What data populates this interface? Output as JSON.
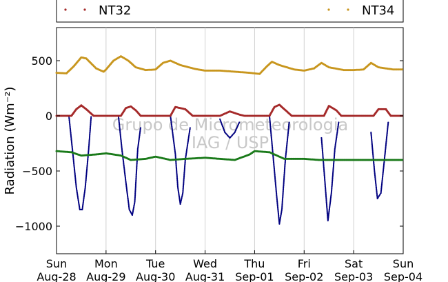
{
  "chart_data": {
    "type": "scatter",
    "ylabel": "Radiation (Wm⁻²)",
    "xlabel": "",
    "ylim": [
      -1250,
      800
    ],
    "yticks": [
      500,
      0,
      -500,
      -1000
    ],
    "grid": "vertical-only",
    "watermark": [
      "Grupo de Micrometeorologia",
      "IAG / USP"
    ],
    "x_ticks": [
      {
        "day": "Sun",
        "date": "Aug-28"
      },
      {
        "day": "Mon",
        "date": "Aug-29"
      },
      {
        "day": "Tue",
        "date": "Aug-30"
      },
      {
        "day": "Wed",
        "date": "Aug-31"
      },
      {
        "day": "Thu",
        "date": "Sep-01"
      },
      {
        "day": "Fri",
        "date": "Sep-02"
      },
      {
        "day": "Sat",
        "date": "Sep-03"
      },
      {
        "day": "Sun",
        "date": "Sep-04"
      }
    ],
    "legend": {
      "placement": "top",
      "entries": [
        {
          "name": "NT32",
          "color": "#a52a2a"
        },
        {
          "name": "NT34",
          "color": "#c8961e"
        }
      ]
    },
    "series": [
      {
        "key": "nt34",
        "color": "#c8961e",
        "points": [
          [
            0,
            390
          ],
          [
            0.2,
            385
          ],
          [
            0.35,
            450
          ],
          [
            0.5,
            530
          ],
          [
            0.6,
            520
          ],
          [
            0.8,
            430
          ],
          [
            0.95,
            400
          ],
          [
            1.0,
            420
          ],
          [
            1.15,
            500
          ],
          [
            1.3,
            540
          ],
          [
            1.45,
            500
          ],
          [
            1.6,
            440
          ],
          [
            1.8,
            415
          ],
          [
            2.0,
            420
          ],
          [
            2.15,
            480
          ],
          [
            2.3,
            500
          ],
          [
            2.5,
            460
          ],
          [
            2.8,
            425
          ],
          [
            3.0,
            410
          ],
          [
            3.3,
            410
          ],
          [
            3.6,
            400
          ],
          [
            3.9,
            390
          ],
          [
            4.1,
            380
          ],
          [
            4.25,
            450
          ],
          [
            4.35,
            490
          ],
          [
            4.5,
            460
          ],
          [
            4.8,
            420
          ],
          [
            5.0,
            410
          ],
          [
            5.2,
            430
          ],
          [
            5.35,
            480
          ],
          [
            5.5,
            440
          ],
          [
            5.8,
            415
          ],
          [
            6.0,
            415
          ],
          [
            6.2,
            420
          ],
          [
            6.35,
            480
          ],
          [
            6.5,
            440
          ],
          [
            6.8,
            420
          ],
          [
            7.0,
            420
          ]
        ]
      },
      {
        "key": "nt32",
        "color": "#a52a2a",
        "points": [
          [
            0,
            0
          ],
          [
            0.3,
            0
          ],
          [
            0.4,
            60
          ],
          [
            0.5,
            95
          ],
          [
            0.6,
            60
          ],
          [
            0.75,
            0
          ],
          [
            1.0,
            0
          ],
          [
            1.3,
            0
          ],
          [
            1.4,
            70
          ],
          [
            1.5,
            85
          ],
          [
            1.6,
            50
          ],
          [
            1.7,
            0
          ],
          [
            2.0,
            0
          ],
          [
            2.3,
            0
          ],
          [
            2.4,
            80
          ],
          [
            2.6,
            60
          ],
          [
            2.75,
            0
          ],
          [
            3.0,
            0
          ],
          [
            3.3,
            0
          ],
          [
            3.5,
            40
          ],
          [
            3.7,
            10
          ],
          [
            3.8,
            0
          ],
          [
            4.0,
            0
          ],
          [
            4.3,
            0
          ],
          [
            4.4,
            80
          ],
          [
            4.5,
            100
          ],
          [
            4.6,
            60
          ],
          [
            4.75,
            0
          ],
          [
            5.0,
            0
          ],
          [
            5.4,
            0
          ],
          [
            5.5,
            90
          ],
          [
            5.65,
            50
          ],
          [
            5.75,
            0
          ],
          [
            6.0,
            0
          ],
          [
            6.4,
            0
          ],
          [
            6.5,
            60
          ],
          [
            6.65,
            60
          ],
          [
            6.75,
            0
          ],
          [
            7.0,
            0
          ]
        ]
      },
      {
        "key": "green",
        "color": "#1a7a1a",
        "points": [
          [
            0,
            -320
          ],
          [
            0.3,
            -330
          ],
          [
            0.5,
            -360
          ],
          [
            0.8,
            -350
          ],
          [
            1.0,
            -340
          ],
          [
            1.3,
            -360
          ],
          [
            1.5,
            -400
          ],
          [
            1.8,
            -390
          ],
          [
            2.0,
            -370
          ],
          [
            2.3,
            -400
          ],
          [
            2.6,
            -390
          ],
          [
            3.0,
            -380
          ],
          [
            3.3,
            -390
          ],
          [
            3.6,
            -400
          ],
          [
            3.9,
            -350
          ],
          [
            4.0,
            -320
          ],
          [
            4.3,
            -330
          ],
          [
            4.6,
            -390
          ],
          [
            5.0,
            -390
          ],
          [
            5.3,
            -400
          ],
          [
            5.7,
            -400
          ],
          [
            6.0,
            -400
          ],
          [
            6.3,
            -400
          ],
          [
            6.7,
            -400
          ],
          [
            7.0,
            -400
          ]
        ]
      },
      {
        "key": "navy",
        "color": "#000080",
        "points": [
          [
            0.25,
            0
          ],
          [
            0.32,
            -300
          ],
          [
            0.4,
            -650
          ],
          [
            0.47,
            -850
          ],
          [
            0.52,
            -850
          ],
          [
            0.58,
            -650
          ],
          [
            0.65,
            -300
          ],
          [
            0.7,
            0
          ],
          [
            1.25,
            0
          ],
          [
            1.32,
            -300
          ],
          [
            1.4,
            -600
          ],
          [
            1.47,
            -850
          ],
          [
            1.53,
            -900
          ],
          [
            1.58,
            -780
          ],
          [
            1.64,
            -300
          ],
          [
            1.7,
            -100
          ],
          [
            2.3,
            0
          ],
          [
            2.4,
            -350
          ],
          [
            2.45,
            -650
          ],
          [
            2.5,
            -800
          ],
          [
            2.55,
            -700
          ],
          [
            2.6,
            -400
          ],
          [
            2.7,
            -100
          ],
          [
            3.3,
            -30
          ],
          [
            3.4,
            -150
          ],
          [
            3.5,
            -200
          ],
          [
            3.6,
            -150
          ],
          [
            3.7,
            -50
          ],
          [
            4.3,
            0
          ],
          [
            4.38,
            -400
          ],
          [
            4.45,
            -750
          ],
          [
            4.5,
            -980
          ],
          [
            4.55,
            -850
          ],
          [
            4.62,
            -400
          ],
          [
            4.7,
            -50
          ],
          [
            5.35,
            -200
          ],
          [
            5.42,
            -600
          ],
          [
            5.48,
            -950
          ],
          [
            5.55,
            -700
          ],
          [
            5.62,
            -300
          ],
          [
            5.7,
            -50
          ],
          [
            6.35,
            -150
          ],
          [
            6.42,
            -500
          ],
          [
            6.48,
            -750
          ],
          [
            6.55,
            -700
          ],
          [
            6.62,
            -400
          ],
          [
            6.7,
            -50
          ]
        ]
      }
    ]
  }
}
